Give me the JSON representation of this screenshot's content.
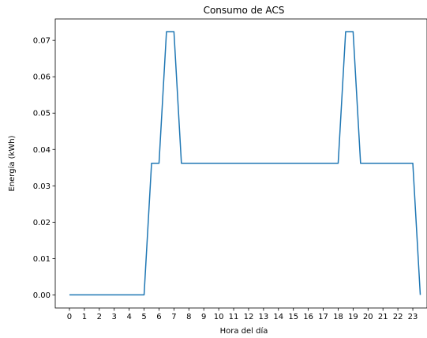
{
  "chart_data": {
    "type": "line",
    "title": "Consumo de ACS",
    "xlabel": "Hora del día",
    "ylabel": "Energía (kWh)",
    "xlim": [
      -0.95,
      23.95
    ],
    "ylim": [
      -0.0036,
      0.0759
    ],
    "grid": false,
    "xticks": [
      0,
      1,
      2,
      3,
      4,
      5,
      6,
      7,
      8,
      9,
      10,
      11,
      12,
      13,
      14,
      15,
      16,
      17,
      18,
      19,
      20,
      21,
      22,
      23
    ],
    "xtick_labels": [
      "0",
      "1",
      "2",
      "3",
      "4",
      "5",
      "6",
      "7",
      "8",
      "9",
      "10",
      "11",
      "12",
      "13",
      "14",
      "15",
      "16",
      "17",
      "18",
      "19",
      "20",
      "21",
      "22",
      "23"
    ],
    "yticks": [
      0.0,
      0.01,
      0.02,
      0.03,
      0.04,
      0.05,
      0.06,
      0.07
    ],
    "ytick_labels": [
      "0.00",
      "0.01",
      "0.02",
      "0.03",
      "0.04",
      "0.05",
      "0.06",
      "0.07"
    ],
    "series": [
      {
        "color": "#1f77b4",
        "x": [
          0,
          0.5,
          1,
          1.5,
          2,
          2.5,
          3,
          3.5,
          4,
          4.5,
          5,
          5.5,
          6,
          6.5,
          7,
          7.5,
          8,
          8.5,
          9,
          9.5,
          10,
          10.5,
          11,
          11.5,
          12,
          12.5,
          13,
          13.5,
          14,
          14.5,
          15,
          15.5,
          16,
          16.5,
          17,
          17.5,
          18,
          18.5,
          19,
          19.5,
          20,
          20.5,
          21,
          21.5,
          22,
          22.5,
          23,
          23.5
        ],
        "y": [
          0,
          0,
          0,
          0,
          0,
          0,
          0,
          0,
          0,
          0,
          0,
          0.0362,
          0.0362,
          0.0724,
          0.0724,
          0.0362,
          0.0362,
          0.0362,
          0.0362,
          0.0362,
          0.0362,
          0.0362,
          0.0362,
          0.0362,
          0.0362,
          0.0362,
          0.0362,
          0.0362,
          0.0362,
          0.0362,
          0.0362,
          0.0362,
          0.0362,
          0.0362,
          0.0362,
          0.0362,
          0.0362,
          0.0724,
          0.0724,
          0.0362,
          0.0362,
          0.0362,
          0.0362,
          0.0362,
          0.0362,
          0.0362,
          0.0362,
          0
        ]
      }
    ]
  }
}
